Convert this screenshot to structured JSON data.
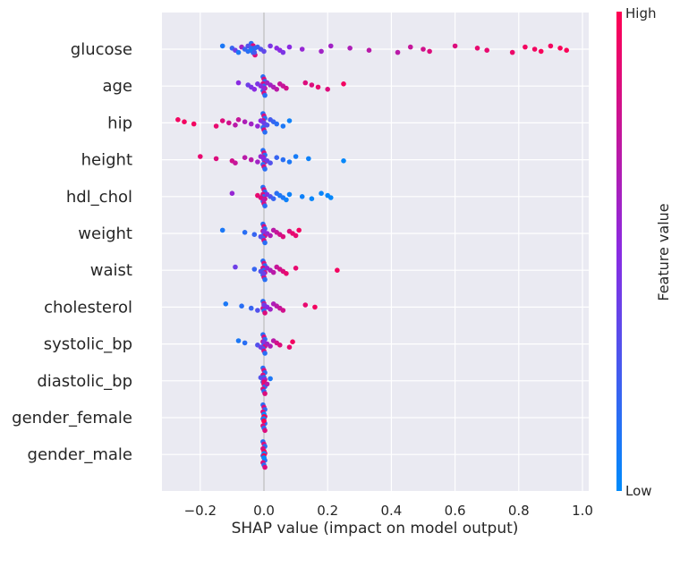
{
  "chart_data": {
    "type": "scatter",
    "subtype": "shap-beeswarm",
    "xlabel": "SHAP value (impact on model output)",
    "xlim": [
      -0.32,
      1.02
    ],
    "x_ticks": [
      -0.2,
      0.0,
      0.2,
      0.4,
      0.6,
      0.8,
      1.0
    ],
    "x_tick_labels": [
      "−0.2",
      "0.0",
      "0.2",
      "0.4",
      "0.6",
      "0.8",
      "1.0"
    ],
    "grid": true,
    "colorbar": {
      "title": "Feature value",
      "high_label": "High",
      "low_label": "Low",
      "high_color": "#ff0052",
      "mid_color": "#8a2be2",
      "low_color": "#008bfb"
    },
    "features": [
      {
        "name": "glucose",
        "points": [
          [
            -0.13,
            0.1
          ],
          [
            -0.1,
            0.2
          ],
          [
            -0.09,
            0.4
          ],
          [
            -0.08,
            0.1
          ],
          [
            -0.07,
            0.6
          ],
          [
            -0.06,
            0.2
          ],
          [
            -0.05,
            0.15
          ],
          [
            -0.05,
            0.3
          ],
          [
            -0.04,
            0.2
          ],
          [
            -0.04,
            0.1
          ],
          [
            -0.03,
            0.25
          ],
          [
            -0.02,
            0.2
          ],
          [
            -0.01,
            0.3
          ],
          [
            0.0,
            0.35
          ],
          [
            0.02,
            0.45
          ],
          [
            0.04,
            0.5
          ],
          [
            0.05,
            0.5
          ],
          [
            0.06,
            0.45
          ],
          [
            0.08,
            0.5
          ],
          [
            0.12,
            0.55
          ],
          [
            0.18,
            0.6
          ],
          [
            0.21,
            0.6
          ],
          [
            0.27,
            0.65
          ],
          [
            0.33,
            0.7
          ],
          [
            0.42,
            0.7
          ],
          [
            0.46,
            0.75
          ],
          [
            0.5,
            0.8
          ],
          [
            0.52,
            0.85
          ],
          [
            0.6,
            0.85
          ],
          [
            0.67,
            0.9
          ],
          [
            0.7,
            0.9
          ],
          [
            0.78,
            0.92
          ],
          [
            0.82,
            0.95
          ],
          [
            0.85,
            0.95
          ],
          [
            0.87,
            0.97
          ],
          [
            0.9,
            0.95
          ],
          [
            0.93,
            0.98
          ],
          [
            0.95,
            0.98
          ]
        ]
      },
      {
        "name": "age",
        "points": [
          [
            -0.08,
            0.5
          ],
          [
            -0.05,
            0.4
          ],
          [
            -0.04,
            0.45
          ],
          [
            -0.03,
            0.5
          ],
          [
            -0.02,
            0.45
          ],
          [
            -0.01,
            0.5
          ],
          [
            0.0,
            0.55
          ],
          [
            0.01,
            0.6
          ],
          [
            0.02,
            0.6
          ],
          [
            0.03,
            0.65
          ],
          [
            0.04,
            0.7
          ],
          [
            0.05,
            0.75
          ],
          [
            0.06,
            0.75
          ],
          [
            0.07,
            0.8
          ],
          [
            0.13,
            0.85
          ],
          [
            0.15,
            0.85
          ],
          [
            0.17,
            0.9
          ],
          [
            0.2,
            0.85
          ],
          [
            0.25,
            0.95
          ]
        ]
      },
      {
        "name": "hip",
        "points": [
          [
            -0.27,
            0.95
          ],
          [
            -0.25,
            0.95
          ],
          [
            -0.22,
            0.95
          ],
          [
            -0.15,
            0.9
          ],
          [
            -0.13,
            0.85
          ],
          [
            -0.11,
            0.8
          ],
          [
            -0.09,
            0.7
          ],
          [
            -0.08,
            0.75
          ],
          [
            -0.06,
            0.65
          ],
          [
            -0.04,
            0.6
          ],
          [
            -0.02,
            0.55
          ],
          [
            -0.01,
            0.5
          ],
          [
            0.0,
            0.4
          ],
          [
            0.01,
            0.3
          ],
          [
            0.02,
            0.25
          ],
          [
            0.03,
            0.2
          ],
          [
            0.04,
            0.15
          ],
          [
            0.06,
            0.1
          ],
          [
            0.08,
            0.05
          ]
        ]
      },
      {
        "name": "height",
        "points": [
          [
            -0.2,
            0.9
          ],
          [
            -0.15,
            0.85
          ],
          [
            -0.1,
            0.8
          ],
          [
            -0.09,
            0.75
          ],
          [
            -0.06,
            0.7
          ],
          [
            -0.04,
            0.7
          ],
          [
            -0.02,
            0.6
          ],
          [
            -0.01,
            0.55
          ],
          [
            0.0,
            0.5
          ],
          [
            0.01,
            0.4
          ],
          [
            0.02,
            0.3
          ],
          [
            0.04,
            0.2
          ],
          [
            0.06,
            0.15
          ],
          [
            0.08,
            0.1
          ],
          [
            0.1,
            0.08
          ],
          [
            0.14,
            0.05
          ],
          [
            0.25,
            0.02
          ]
        ]
      },
      {
        "name": "hdl_chol",
        "points": [
          [
            -0.1,
            0.55
          ],
          [
            -0.02,
            0.9
          ],
          [
            -0.01,
            0.85
          ],
          [
            0.0,
            0.7
          ],
          [
            0.01,
            0.5
          ],
          [
            0.02,
            0.3
          ],
          [
            0.03,
            0.2
          ],
          [
            0.04,
            0.15
          ],
          [
            0.05,
            0.1
          ],
          [
            0.06,
            0.1
          ],
          [
            0.07,
            0.05
          ],
          [
            0.08,
            0.05
          ],
          [
            0.12,
            0.05
          ],
          [
            0.15,
            0.03
          ],
          [
            0.18,
            0.03
          ],
          [
            0.2,
            0.02
          ],
          [
            0.21,
            0.02
          ]
        ]
      },
      {
        "name": "weight",
        "points": [
          [
            -0.13,
            0.1
          ],
          [
            -0.06,
            0.15
          ],
          [
            -0.03,
            0.2
          ],
          [
            -0.01,
            0.3
          ],
          [
            0.0,
            0.45
          ],
          [
            0.01,
            0.55
          ],
          [
            0.02,
            0.65
          ],
          [
            0.03,
            0.7
          ],
          [
            0.04,
            0.75
          ],
          [
            0.05,
            0.8
          ],
          [
            0.06,
            0.85
          ],
          [
            0.08,
            0.85
          ],
          [
            0.09,
            0.9
          ],
          [
            0.1,
            0.9
          ],
          [
            0.11,
            0.95
          ]
        ]
      },
      {
        "name": "waist",
        "points": [
          [
            -0.09,
            0.4
          ],
          [
            -0.03,
            0.2
          ],
          [
            -0.01,
            0.3
          ],
          [
            0.0,
            0.4
          ],
          [
            0.01,
            0.55
          ],
          [
            0.02,
            0.65
          ],
          [
            0.03,
            0.7
          ],
          [
            0.04,
            0.75
          ],
          [
            0.05,
            0.8
          ],
          [
            0.06,
            0.85
          ],
          [
            0.07,
            0.9
          ],
          [
            0.1,
            0.9
          ],
          [
            0.23,
            0.95
          ]
        ]
      },
      {
        "name": "cholesterol",
        "points": [
          [
            -0.12,
            0.1
          ],
          [
            -0.07,
            0.15
          ],
          [
            -0.04,
            0.2
          ],
          [
            -0.02,
            0.3
          ],
          [
            0.0,
            0.4
          ],
          [
            0.01,
            0.5
          ],
          [
            0.02,
            0.6
          ],
          [
            0.03,
            0.65
          ],
          [
            0.04,
            0.7
          ],
          [
            0.05,
            0.75
          ],
          [
            0.06,
            0.8
          ],
          [
            0.13,
            0.9
          ],
          [
            0.16,
            0.95
          ]
        ]
      },
      {
        "name": "systolic_bp",
        "points": [
          [
            -0.08,
            0.1
          ],
          [
            -0.06,
            0.15
          ],
          [
            -0.02,
            0.3
          ],
          [
            -0.01,
            0.4
          ],
          [
            0.0,
            0.45
          ],
          [
            0.01,
            0.6
          ],
          [
            0.02,
            0.65
          ],
          [
            0.03,
            0.7
          ],
          [
            0.04,
            0.8
          ],
          [
            0.05,
            0.85
          ],
          [
            0.08,
            0.9
          ],
          [
            0.09,
            0.95
          ]
        ]
      },
      {
        "name": "diastolic_bp",
        "points": [
          [
            -0.01,
            0.3
          ],
          [
            0.0,
            0.5
          ],
          [
            0.0,
            0.9
          ],
          [
            0.01,
            0.7
          ],
          [
            0.02,
            0.1
          ]
        ]
      },
      {
        "name": "gender_female",
        "points": [
          [
            0.0,
            0.0
          ],
          [
            0.0,
            1.0
          ],
          [
            0.0,
            0.0
          ],
          [
            0.0,
            1.0
          ]
        ]
      },
      {
        "name": "gender_male",
        "points": [
          [
            0.0,
            1.0
          ],
          [
            0.0,
            0.0
          ],
          [
            0.0,
            1.0
          ],
          [
            0.0,
            0.0
          ]
        ]
      }
    ]
  }
}
